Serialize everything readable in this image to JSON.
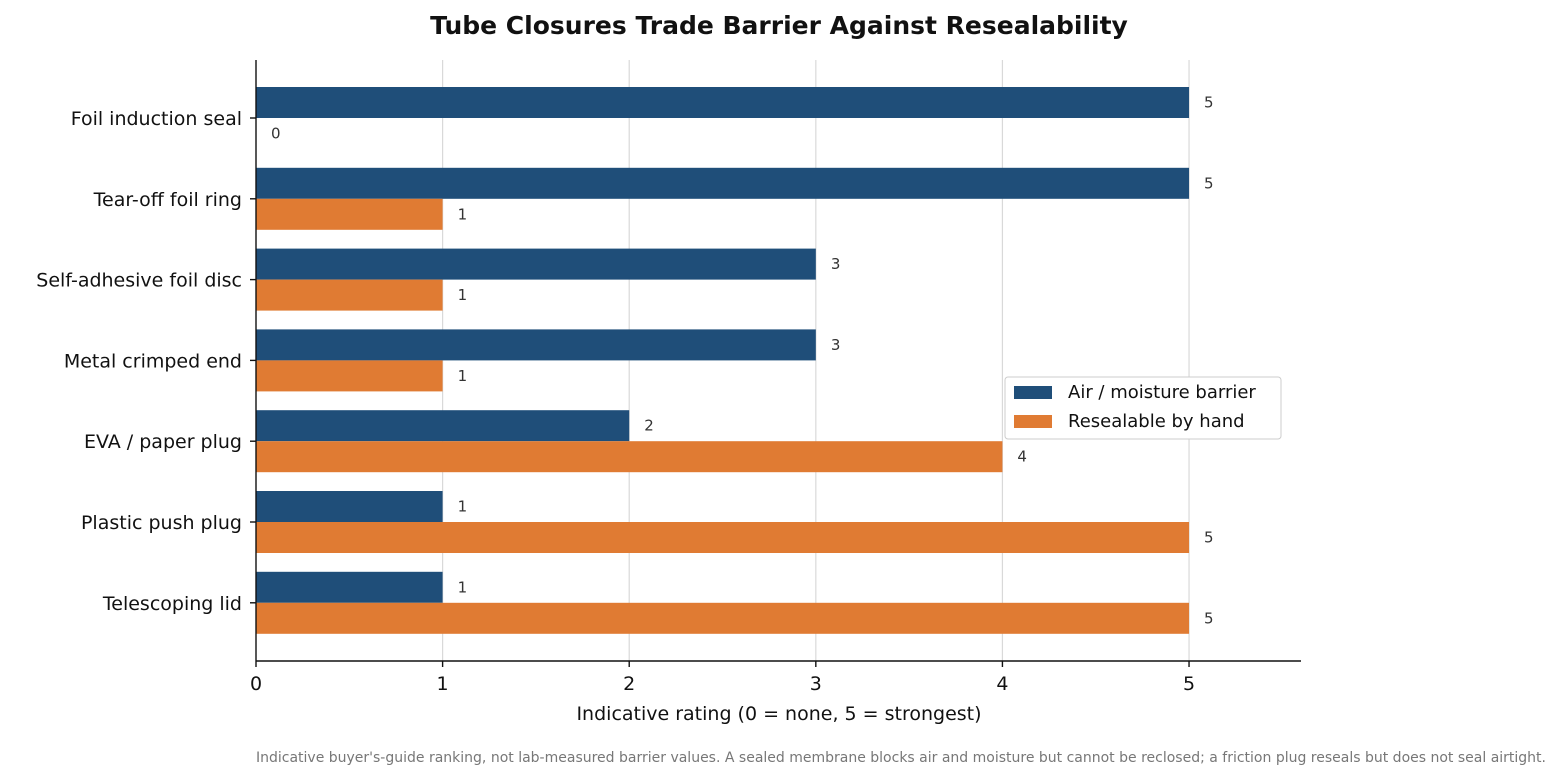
{
  "chart_data": {
    "type": "bar",
    "orientation": "horizontal",
    "title": "Tube Closures Trade Barrier Against Resealability",
    "xlabel": "Indicative rating (0 = none, 5 = strongest)",
    "ylabel": "",
    "xlim": [
      0,
      5.6
    ],
    "xticks": [
      0,
      1,
      2,
      3,
      4,
      5
    ],
    "grid": "vertical",
    "legend_position": "center-right",
    "categories": [
      "Foil induction seal",
      "Tear-off foil ring",
      "Self-adhesive foil disc",
      "Metal crimped end",
      "EVA / paper plug",
      "Plastic push plug",
      "Telescoping lid"
    ],
    "series": [
      {
        "name": "Air / moisture barrier",
        "color": "#1f4e79",
        "values": [
          5,
          5,
          3,
          3,
          2,
          1,
          1
        ]
      },
      {
        "name": "Resealable by hand",
        "color": "#e07b33",
        "values": [
          0,
          1,
          1,
          1,
          4,
          5,
          5
        ]
      }
    ],
    "footnote": "Indicative buyer's-guide ranking, not lab-measured barrier values. A sealed membrane blocks air and moisture but cannot be reclosed; a friction plug reseals but does not seal airtight."
  }
}
